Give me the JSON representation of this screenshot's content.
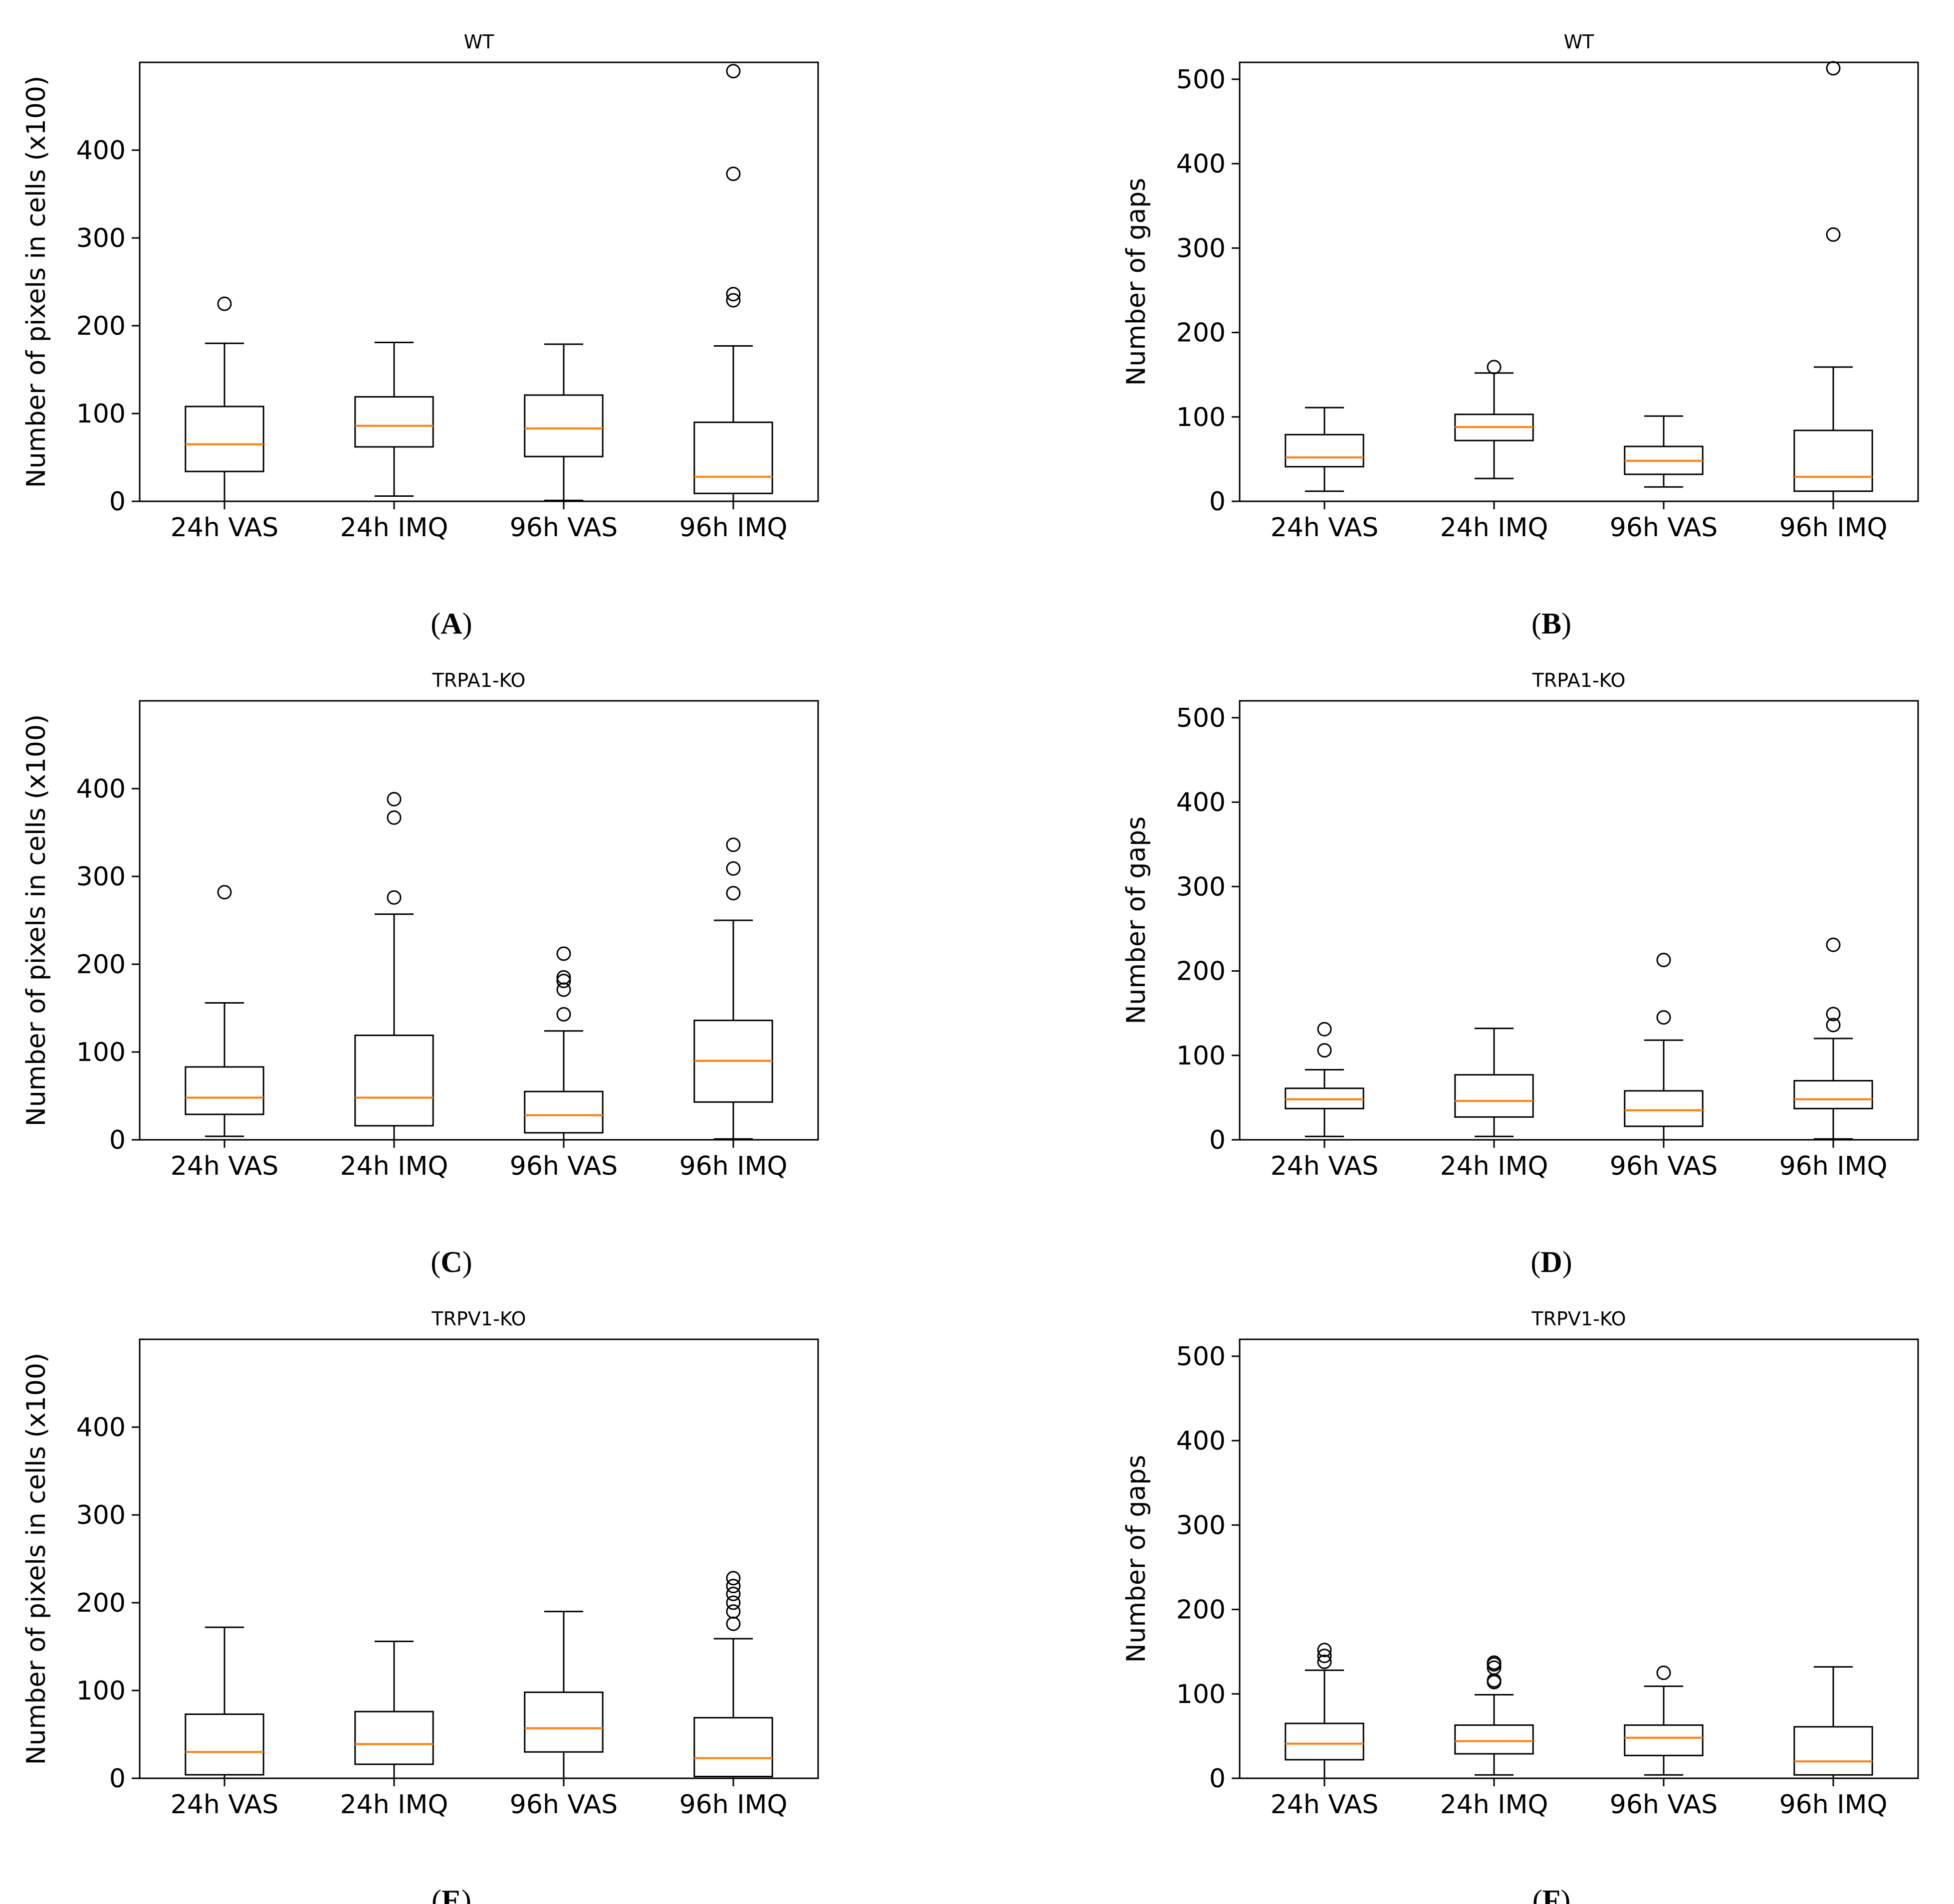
{
  "colors": {
    "box": "#000000",
    "median": "#ff7f0e",
    "frame": "#000000",
    "flier": "#000000"
  },
  "chart_data": [
    {
      "panel": "A",
      "type": "box",
      "title": "WT",
      "ylabel": "Number of pixels in cells (x100)",
      "ylim": [
        0,
        500
      ],
      "yticks": [
        0,
        100,
        200,
        300,
        400
      ],
      "categories": [
        "24h VAS",
        "24h IMQ",
        "96h VAS",
        "96h IMQ"
      ],
      "boxes": [
        {
          "whislo": 0,
          "q1": 34,
          "med": 65,
          "q3": 108,
          "whishi": 180,
          "fliers": [
            225
          ]
        },
        {
          "whislo": 6,
          "q1": 62,
          "med": 86,
          "q3": 119,
          "whishi": 181,
          "fliers": []
        },
        {
          "whislo": 1,
          "q1": 51,
          "med": 83,
          "q3": 121,
          "whishi": 179,
          "fliers": []
        },
        {
          "whislo": 0,
          "q1": 9,
          "med": 28,
          "q3": 90,
          "whishi": 177,
          "fliers": [
            229,
            236,
            373,
            490
          ]
        }
      ]
    },
    {
      "panel": "B",
      "type": "box",
      "title": "WT",
      "ylabel": "Number of gaps",
      "ylim": [
        0,
        520
      ],
      "yticks": [
        0,
        100,
        200,
        300,
        400,
        500
      ],
      "categories": [
        "24h VAS",
        "24h IMQ",
        "96h VAS",
        "96h IMQ"
      ],
      "boxes": [
        {
          "whislo": 12,
          "q1": 41,
          "med": 52,
          "q3": 79,
          "whishi": 111,
          "fliers": []
        },
        {
          "whislo": 27,
          "q1": 72,
          "med": 88,
          "q3": 103,
          "whishi": 152,
          "fliers": [
            159
          ]
        },
        {
          "whislo": 17,
          "q1": 32,
          "med": 48,
          "q3": 65,
          "whishi": 101,
          "fliers": []
        },
        {
          "whislo": 0,
          "q1": 12,
          "med": 29,
          "q3": 84,
          "whishi": 159,
          "fliers": [
            316,
            513
          ]
        }
      ]
    },
    {
      "panel": "C",
      "type": "box",
      "title": "TRPA1-KO",
      "ylabel": "Number of pixels in cells (x100)",
      "ylim": [
        0,
        500
      ],
      "yticks": [
        0,
        100,
        200,
        300,
        400
      ],
      "categories": [
        "24h VAS",
        "24h IMQ",
        "96h VAS",
        "96h IMQ"
      ],
      "boxes": [
        {
          "whislo": 4,
          "q1": 29,
          "med": 48,
          "q3": 83,
          "whishi": 156,
          "fliers": [
            282
          ]
        },
        {
          "whislo": 0,
          "q1": 16,
          "med": 48,
          "q3": 119,
          "whishi": 257,
          "fliers": [
            276,
            367,
            388
          ]
        },
        {
          "whislo": 0,
          "q1": 8,
          "med": 28,
          "q3": 55,
          "whishi": 124,
          "fliers": [
            143,
            171,
            181,
            185,
            212
          ]
        },
        {
          "whislo": 1,
          "q1": 43,
          "med": 90,
          "q3": 136,
          "whishi": 250,
          "fliers": [
            281,
            309,
            336
          ]
        }
      ]
    },
    {
      "panel": "D",
      "type": "box",
      "title": "TRPA1-KO",
      "ylabel": "Number of gaps",
      "ylim": [
        0,
        520
      ],
      "yticks": [
        0,
        100,
        200,
        300,
        400,
        500
      ],
      "categories": [
        "24h VAS",
        "24h IMQ",
        "96h VAS",
        "96h IMQ"
      ],
      "boxes": [
        {
          "whislo": 4,
          "q1": 37,
          "med": 48,
          "q3": 61,
          "whishi": 83,
          "fliers": [
            106,
            131
          ]
        },
        {
          "whislo": 4,
          "q1": 27,
          "med": 46,
          "q3": 77,
          "whishi": 132,
          "fliers": []
        },
        {
          "whislo": 0,
          "q1": 16,
          "med": 35,
          "q3": 58,
          "whishi": 118,
          "fliers": [
            145,
            213
          ]
        },
        {
          "whislo": 1,
          "q1": 37,
          "med": 48,
          "q3": 70,
          "whishi": 120,
          "fliers": [
            136,
            149,
            231
          ]
        }
      ]
    },
    {
      "panel": "E",
      "type": "box",
      "title": "TRPV1-KO",
      "ylabel": "Number of pixels in cells (x100)",
      "ylim": [
        0,
        500
      ],
      "yticks": [
        0,
        100,
        200,
        300,
        400
      ],
      "categories": [
        "24h VAS",
        "24h IMQ",
        "96h VAS",
        "96h IMQ"
      ],
      "boxes": [
        {
          "whislo": 0,
          "q1": 4,
          "med": 30,
          "q3": 73,
          "whishi": 172,
          "fliers": []
        },
        {
          "whislo": 0,
          "q1": 16,
          "med": 39,
          "q3": 76,
          "whishi": 156,
          "fliers": []
        },
        {
          "whislo": 0,
          "q1": 30,
          "med": 57,
          "q3": 98,
          "whishi": 190,
          "fliers": []
        },
        {
          "whislo": 0,
          "q1": 2,
          "med": 23,
          "q3": 69,
          "whishi": 159,
          "fliers": [
            176,
            190,
            200,
            210,
            219,
            228
          ]
        }
      ]
    },
    {
      "panel": "F",
      "type": "box",
      "title": "TRPV1-KO",
      "ylabel": "Number of gaps",
      "ylim": [
        0,
        520
      ],
      "yticks": [
        0,
        100,
        200,
        300,
        400,
        500
      ],
      "categories": [
        "24h VAS",
        "24h IMQ",
        "96h VAS",
        "96h IMQ"
      ],
      "boxes": [
        {
          "whislo": 0,
          "q1": 22,
          "med": 41,
          "q3": 65,
          "whishi": 128,
          "fliers": [
            138,
            145,
            152
          ]
        },
        {
          "whislo": 4,
          "q1": 29,
          "med": 44,
          "q3": 63,
          "whishi": 99,
          "fliers": [
            114,
            116,
            131,
            135,
            137
          ]
        },
        {
          "whislo": 4,
          "q1": 27,
          "med": 48,
          "q3": 63,
          "whishi": 109,
          "fliers": [
            125
          ]
        },
        {
          "whislo": 0,
          "q1": 4,
          "med": 20,
          "q3": 61,
          "whishi": 132,
          "fliers": []
        }
      ]
    }
  ]
}
